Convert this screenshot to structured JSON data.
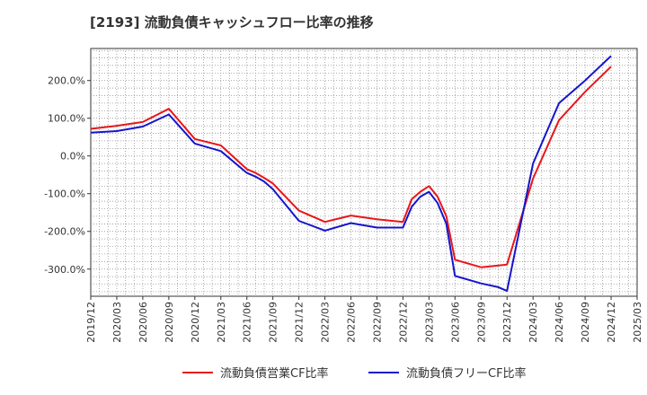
{
  "chart_data": {
    "type": "line",
    "title": "[2193]  流動負債キャッシュフロー比率の推移",
    "xlabel": "",
    "ylabel": "",
    "x_ticks": [
      "2019/12",
      "2020/03",
      "2020/06",
      "2020/09",
      "2020/12",
      "2021/03",
      "2021/06",
      "2021/09",
      "2021/12",
      "2022/03",
      "2022/06",
      "2022/09",
      "2022/12",
      "2023/03",
      "2023/06",
      "2023/09",
      "2023/12",
      "2024/03",
      "2024/06",
      "2024/09",
      "2024/12",
      "2025/03"
    ],
    "y_ticks": [
      {
        "value": 200,
        "label": "200.0%"
      },
      {
        "value": 100,
        "label": "100.0%"
      },
      {
        "value": 0,
        "label": "0.0%"
      },
      {
        "value": -100,
        "label": "-100.0%"
      },
      {
        "value": -200,
        "label": "-200.0%"
      },
      {
        "value": -300,
        "label": "-300.0%"
      }
    ],
    "xlim": [
      "2019/12",
      "2025/03"
    ],
    "ylim": [
      -372,
      285
    ],
    "grid": true,
    "legend_position": "bottom",
    "series": [
      {
        "name": "流動負債営業CF比率",
        "color": "#e8161a",
        "points": [
          [
            "2019/12",
            72
          ],
          [
            "2020/03",
            80
          ],
          [
            "2020/06",
            90
          ],
          [
            "2020/09",
            125
          ],
          [
            "2020/12",
            45
          ],
          [
            "2021/03",
            28
          ],
          [
            "2021/06",
            -35
          ],
          [
            "2021/07",
            -45
          ],
          [
            "2021/08",
            -58
          ],
          [
            "2021/09",
            -73
          ],
          [
            "2021/12",
            -145
          ],
          [
            "2022/03",
            -175
          ],
          [
            "2022/06",
            -158
          ],
          [
            "2022/09",
            -168
          ],
          [
            "2022/12",
            -175
          ],
          [
            "2023/01",
            -115
          ],
          [
            "2023/02",
            -95
          ],
          [
            "2023/03",
            -80
          ],
          [
            "2023/04",
            -108
          ],
          [
            "2023/05",
            -160
          ],
          [
            "2023/06",
            -275
          ],
          [
            "2023/09",
            -295
          ],
          [
            "2023/12",
            -288
          ],
          [
            "2024/03",
            -60
          ],
          [
            "2024/06",
            95
          ],
          [
            "2024/09",
            170
          ],
          [
            "2024/12",
            237
          ]
        ]
      },
      {
        "name": "流動負債フリーCF比率",
        "color": "#1515cc",
        "points": [
          [
            "2019/12",
            62
          ],
          [
            "2020/03",
            66
          ],
          [
            "2020/06",
            78
          ],
          [
            "2020/09",
            110
          ],
          [
            "2020/12",
            33
          ],
          [
            "2021/03",
            13
          ],
          [
            "2021/06",
            -45
          ],
          [
            "2021/07",
            -55
          ],
          [
            "2021/08",
            -68
          ],
          [
            "2021/09",
            -88
          ],
          [
            "2021/12",
            -172
          ],
          [
            "2022/03",
            -198
          ],
          [
            "2022/06",
            -178
          ],
          [
            "2022/09",
            -190
          ],
          [
            "2022/12",
            -190
          ],
          [
            "2023/01",
            -135
          ],
          [
            "2023/02",
            -108
          ],
          [
            "2023/03",
            -95
          ],
          [
            "2023/04",
            -125
          ],
          [
            "2023/05",
            -180
          ],
          [
            "2023/06",
            -318
          ],
          [
            "2023/09",
            -338
          ],
          [
            "2023/11",
            -348
          ],
          [
            "2023/12",
            -358
          ],
          [
            "2024/03",
            -20
          ],
          [
            "2024/06",
            140
          ],
          [
            "2024/09",
            200
          ],
          [
            "2024/12",
            265
          ]
        ]
      }
    ]
  }
}
